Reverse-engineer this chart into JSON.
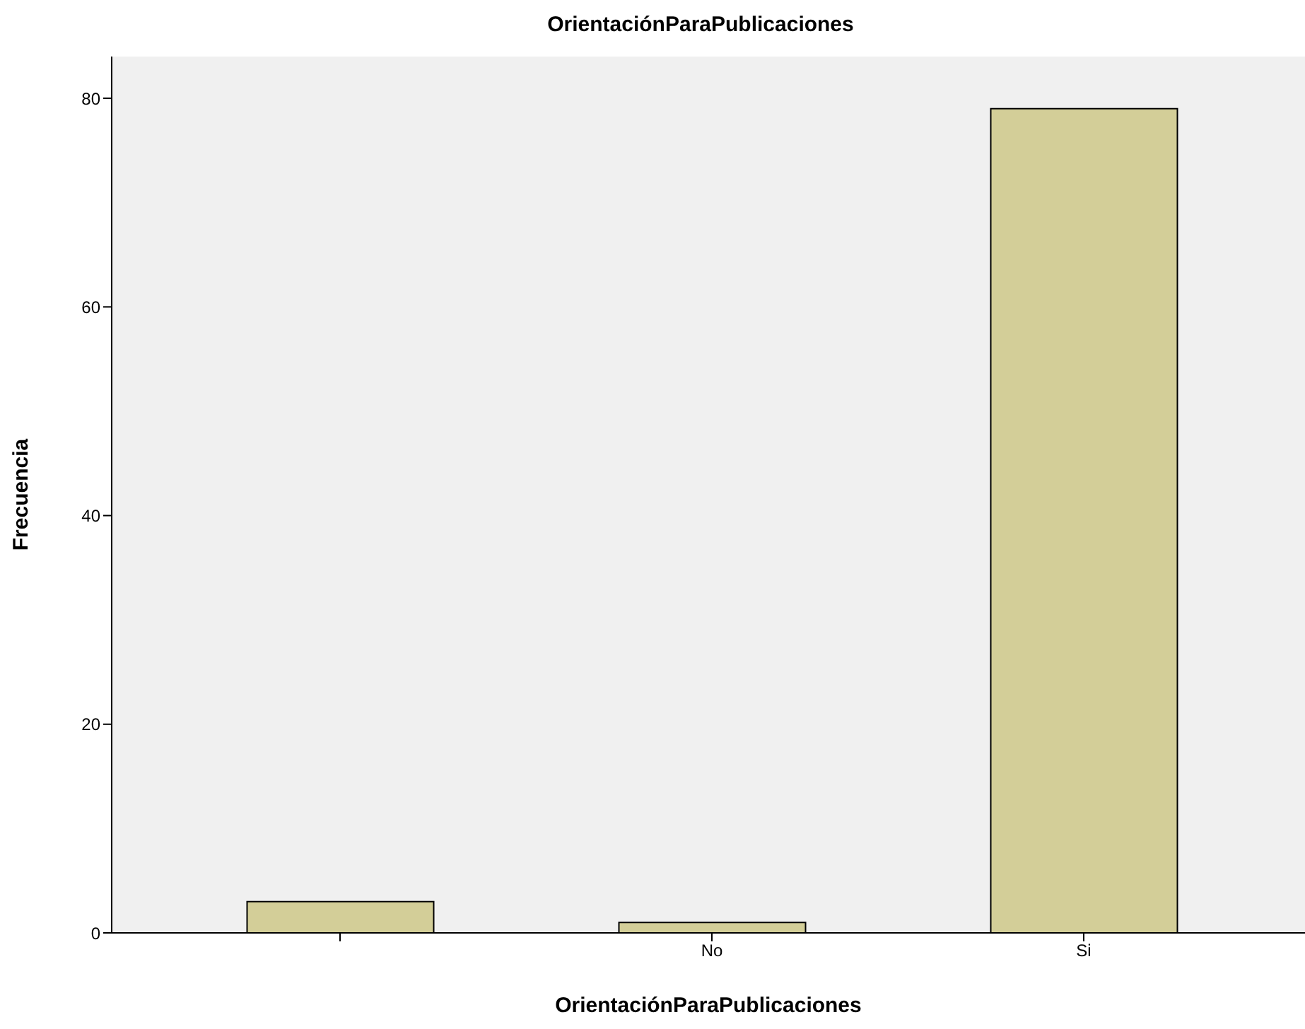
{
  "chart_data": {
    "type": "bar",
    "title": "OrientaciónParaPublicaciones",
    "xlabel": "OrientaciónParaPublicaciones",
    "ylabel": "Frecuencia",
    "categories": [
      null,
      "No",
      "Si"
    ],
    "series": [
      {
        "color": "#d3ce98",
        "values": [
          3,
          1,
          79
        ]
      }
    ],
    "ylim": [
      0,
      84
    ],
    "yticks": [
      0,
      20,
      40,
      60,
      80
    ],
    "legend": false
  }
}
